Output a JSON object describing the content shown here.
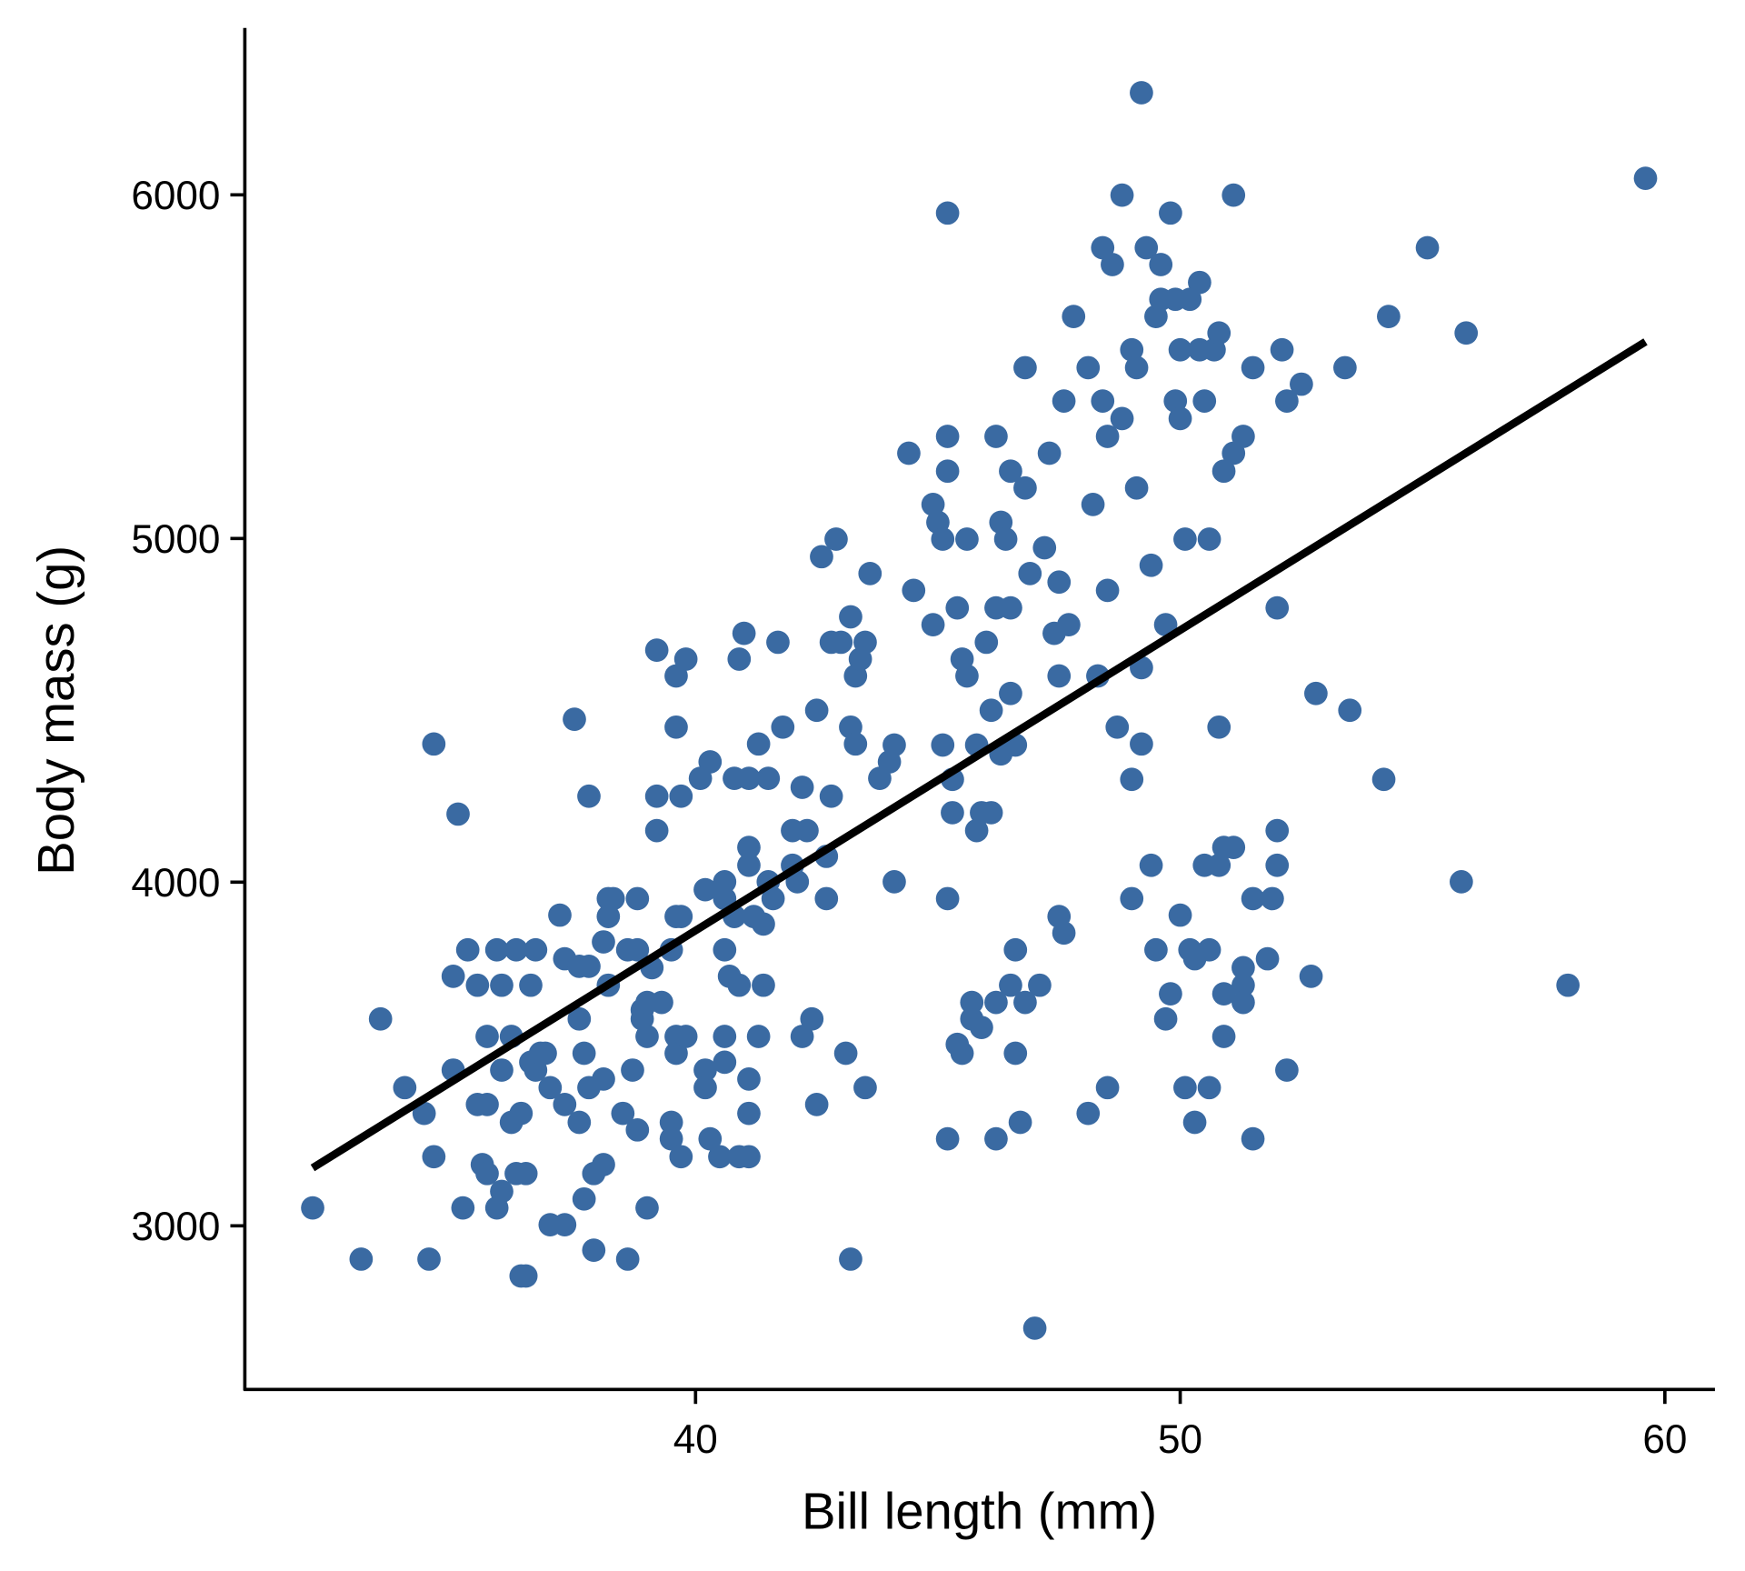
{
  "chart_data": {
    "type": "scatter",
    "title": "",
    "xlabel": "Bill length (mm)",
    "ylabel": "Body mass (g)",
    "xlim": [
      30.7,
      61.0
    ],
    "ylim": [
      2524,
      6486
    ],
    "grid": false,
    "legend": "none",
    "x_ticks": [
      40,
      50,
      60
    ],
    "x_tick_labels": [
      "40",
      "50",
      "60"
    ],
    "y_ticks": [
      3000,
      4000,
      5000,
      6000
    ],
    "y_tick_labels": [
      "3000",
      "4000",
      "5000",
      "6000"
    ],
    "point_color": "#3a6aa2",
    "line_color": "#000000",
    "trendline": {
      "type": "linear",
      "intercept": 362.3,
      "slope": 87.42,
      "x_range": [
        32.1,
        59.6
      ]
    },
    "points": [
      [
        32.1,
        3052
      ],
      [
        33.1,
        2903
      ],
      [
        33.5,
        3602
      ],
      [
        34.0,
        3402
      ],
      [
        34.4,
        3327
      ],
      [
        34.5,
        2903
      ],
      [
        34.6,
        4402
      ],
      [
        34.6,
        3201
      ],
      [
        35.0,
        3453
      ],
      [
        35.0,
        3726
      ],
      [
        35.1,
        4198
      ],
      [
        35.2,
        3052
      ],
      [
        35.3,
        3803
      ],
      [
        35.5,
        3700
      ],
      [
        35.5,
        3353
      ],
      [
        35.6,
        3178
      ],
      [
        35.7,
        3551
      ],
      [
        35.7,
        3353
      ],
      [
        35.7,
        3152
      ],
      [
        35.9,
        3803
      ],
      [
        35.9,
        3052
      ],
      [
        36.0,
        3700
      ],
      [
        36.0,
        3453
      ],
      [
        36.0,
        3100
      ],
      [
        36.2,
        3551
      ],
      [
        36.2,
        3301
      ],
      [
        36.3,
        3803
      ],
      [
        36.3,
        3152
      ],
      [
        36.4,
        3327
      ],
      [
        36.4,
        2854
      ],
      [
        36.5,
        2854
      ],
      [
        36.5,
        3152
      ],
      [
        36.6,
        3700
      ],
      [
        36.6,
        3476
      ],
      [
        36.7,
        3803
      ],
      [
        36.7,
        3453
      ],
      [
        36.8,
        3502
      ],
      [
        36.9,
        3502
      ],
      [
        37.0,
        3402
      ],
      [
        37.0,
        3003
      ],
      [
        37.2,
        3904
      ],
      [
        37.3,
        3003
      ],
      [
        37.3,
        3353
      ],
      [
        37.3,
        3777
      ],
      [
        37.5,
        4474
      ],
      [
        37.6,
        3301
      ],
      [
        37.6,
        3602
      ],
      [
        37.6,
        3755
      ],
      [
        37.7,
        3502
      ],
      [
        37.7,
        3078
      ],
      [
        37.8,
        4250
      ],
      [
        37.8,
        3402
      ],
      [
        37.8,
        3755
      ],
      [
        37.9,
        2929
      ],
      [
        37.9,
        3152
      ],
      [
        38.1,
        3178
      ],
      [
        38.1,
        3427
      ],
      [
        38.1,
        3826
      ],
      [
        38.2,
        3900
      ],
      [
        38.2,
        3700
      ],
      [
        38.2,
        3952
      ],
      [
        38.3,
        3952
      ],
      [
        38.5,
        3327
      ],
      [
        38.6,
        2903
      ],
      [
        38.6,
        3803
      ],
      [
        38.7,
        3453
      ],
      [
        38.8,
        3952
      ],
      [
        38.8,
        3279
      ],
      [
        38.8,
        3803
      ],
      [
        38.9,
        3628
      ],
      [
        38.9,
        3602
      ],
      [
        39.0,
        3052
      ],
      [
        39.0,
        3551
      ],
      [
        39.0,
        3650
      ],
      [
        39.1,
        3751
      ],
      [
        39.2,
        4675
      ],
      [
        39.2,
        4150
      ],
      [
        39.2,
        4250
      ],
      [
        39.3,
        3650
      ],
      [
        39.5,
        3301
      ],
      [
        39.5,
        3253
      ],
      [
        39.5,
        3803
      ],
      [
        39.6,
        4600
      ],
      [
        39.6,
        4451
      ],
      [
        39.6,
        3900
      ],
      [
        39.6,
        3551
      ],
      [
        39.6,
        3502
      ],
      [
        39.7,
        3201
      ],
      [
        39.7,
        4250
      ],
      [
        39.7,
        3900
      ],
      [
        39.8,
        4649
      ],
      [
        39.8,
        3551
      ],
      [
        40.1,
        4302
      ],
      [
        40.2,
        3978
      ],
      [
        40.2,
        3453
      ],
      [
        40.2,
        3402
      ],
      [
        40.3,
        3253
      ],
      [
        40.3,
        4350
      ],
      [
        40.5,
        3201
      ],
      [
        40.6,
        3952
      ],
      [
        40.6,
        4001
      ],
      [
        40.6,
        3803
      ],
      [
        40.6,
        3551
      ],
      [
        40.6,
        3476
      ],
      [
        40.7,
        3726
      ],
      [
        40.8,
        4302
      ],
      [
        40.8,
        3900
      ],
      [
        40.9,
        3700
      ],
      [
        40.9,
        3201
      ],
      [
        40.9,
        4649
      ],
      [
        41.0,
        4724
      ],
      [
        41.1,
        4302
      ],
      [
        41.1,
        4049
      ],
      [
        41.1,
        4101
      ],
      [
        41.1,
        3427
      ],
      [
        41.1,
        3327
      ],
      [
        41.1,
        3201
      ],
      [
        41.2,
        3900
      ],
      [
        41.3,
        4402
      ],
      [
        41.3,
        3551
      ],
      [
        41.4,
        3878
      ],
      [
        41.4,
        3700
      ],
      [
        41.5,
        4001
      ],
      [
        41.5,
        4302
      ],
      [
        41.6,
        3952
      ],
      [
        41.7,
        4698
      ],
      [
        41.8,
        4451
      ],
      [
        42.0,
        4150
      ],
      [
        42.0,
        4049
      ],
      [
        42.1,
        4001
      ],
      [
        42.2,
        4276
      ],
      [
        42.2,
        3551
      ],
      [
        42.3,
        4150
      ],
      [
        42.4,
        3602
      ],
      [
        42.5,
        3353
      ],
      [
        42.5,
        4500
      ],
      [
        42.6,
        4947
      ],
      [
        42.7,
        4075
      ],
      [
        42.7,
        3952
      ],
      [
        42.8,
        4250
      ],
      [
        42.8,
        4698
      ],
      [
        42.9,
        4998
      ],
      [
        43.0,
        4698
      ],
      [
        43.1,
        3502
      ],
      [
        43.2,
        4772
      ],
      [
        43.2,
        4451
      ],
      [
        43.2,
        2903
      ],
      [
        43.3,
        4600
      ],
      [
        43.3,
        4402
      ],
      [
        43.4,
        4649
      ],
      [
        43.5,
        4698
      ],
      [
        43.5,
        3402
      ],
      [
        43.6,
        4898
      ],
      [
        43.8,
        4302
      ],
      [
        44.0,
        4350
      ],
      [
        44.1,
        4399
      ],
      [
        44.1,
        4001
      ],
      [
        44.4,
        5248
      ],
      [
        44.5,
        4849
      ],
      [
        44.9,
        4749
      ],
      [
        44.9,
        5099
      ],
      [
        45.0,
        5047
      ],
      [
        45.1,
        4399
      ],
      [
        45.1,
        4998
      ],
      [
        45.2,
        5297
      ],
      [
        45.2,
        5196
      ],
      [
        45.2,
        3952
      ],
      [
        45.2,
        3253
      ],
      [
        45.2,
        5947
      ],
      [
        45.3,
        4299
      ],
      [
        45.3,
        4202
      ],
      [
        45.4,
        4798
      ],
      [
        45.4,
        3528
      ],
      [
        45.5,
        3502
      ],
      [
        45.5,
        4649
      ],
      [
        45.6,
        4600
      ],
      [
        45.6,
        4998
      ],
      [
        45.7,
        3602
      ],
      [
        45.7,
        3650
      ],
      [
        45.8,
        4399
      ],
      [
        45.8,
        4150
      ],
      [
        45.9,
        4202
      ],
      [
        45.9,
        3577
      ],
      [
        46.0,
        4698
      ],
      [
        46.1,
        4202
      ],
      [
        46.1,
        4500
      ],
      [
        46.2,
        5297
      ],
      [
        46.2,
        3650
      ],
      [
        46.2,
        4798
      ],
      [
        46.2,
        3253
      ],
      [
        46.3,
        4373
      ],
      [
        46.3,
        5047
      ],
      [
        46.4,
        4998
      ],
      [
        46.5,
        4798
      ],
      [
        46.5,
        3700
      ],
      [
        46.5,
        4549
      ],
      [
        46.5,
        5196
      ],
      [
        46.6,
        4399
      ],
      [
        46.6,
        3502
      ],
      [
        46.6,
        3803
      ],
      [
        46.7,
        3301
      ],
      [
        46.8,
        5497
      ],
      [
        46.8,
        5147
      ],
      [
        46.8,
        3650
      ],
      [
        46.9,
        4898
      ],
      [
        47.0,
        2702
      ],
      [
        47.1,
        3700
      ],
      [
        47.2,
        4973
      ],
      [
        47.3,
        5248
      ],
      [
        47.4,
        4724
      ],
      [
        47.5,
        4600
      ],
      [
        47.5,
        4873
      ],
      [
        47.5,
        3900
      ],
      [
        47.6,
        3852
      ],
      [
        47.6,
        5400
      ],
      [
        47.7,
        4749
      ],
      [
        47.8,
        5646
      ],
      [
        48.1,
        3327
      ],
      [
        48.1,
        5497
      ],
      [
        48.2,
        5099
      ],
      [
        48.3,
        4600
      ],
      [
        48.4,
        5846
      ],
      [
        48.4,
        5400
      ],
      [
        48.5,
        5297
      ],
      [
        48.5,
        4849
      ],
      [
        48.5,
        3402
      ],
      [
        48.6,
        5797
      ],
      [
        48.7,
        4451
      ],
      [
        48.8,
        5349
      ],
      [
        48.8,
        5999
      ],
      [
        49.0,
        5549
      ],
      [
        49.0,
        4299
      ],
      [
        49.0,
        3952
      ],
      [
        49.1,
        5147
      ],
      [
        49.1,
        5497
      ],
      [
        49.2,
        4624
      ],
      [
        49.2,
        4402
      ],
      [
        49.2,
        6297
      ],
      [
        49.3,
        5846
      ],
      [
        49.4,
        4049
      ],
      [
        49.4,
        4922
      ],
      [
        49.5,
        3803
      ],
      [
        49.5,
        5646
      ],
      [
        49.6,
        5797
      ],
      [
        49.6,
        5696
      ],
      [
        49.7,
        4749
      ],
      [
        49.7,
        3602
      ],
      [
        49.8,
        3675
      ],
      [
        49.8,
        5947
      ],
      [
        49.9,
        5696
      ],
      [
        49.9,
        5400
      ],
      [
        50.0,
        3904
      ],
      [
        50.0,
        5349
      ],
      [
        50.0,
        5549
      ],
      [
        50.1,
        4998
      ],
      [
        50.1,
        3402
      ],
      [
        50.2,
        3803
      ],
      [
        50.2,
        5696
      ],
      [
        50.3,
        3777
      ],
      [
        50.3,
        3301
      ],
      [
        50.4,
        5745
      ],
      [
        50.4,
        5549
      ],
      [
        50.5,
        4049
      ],
      [
        50.5,
        5400
      ],
      [
        50.6,
        4998
      ],
      [
        50.6,
        3402
      ],
      [
        50.6,
        3803
      ],
      [
        50.7,
        5549
      ],
      [
        50.8,
        4049
      ],
      [
        50.8,
        5598
      ],
      [
        50.8,
        4451
      ],
      [
        50.9,
        5196
      ],
      [
        50.9,
        4101
      ],
      [
        50.9,
        3675
      ],
      [
        50.9,
        3551
      ],
      [
        51.1,
        4101
      ],
      [
        51.1,
        5248
      ],
      [
        51.1,
        5999
      ],
      [
        51.3,
        3700
      ],
      [
        51.3,
        3751
      ],
      [
        51.3,
        5297
      ],
      [
        51.3,
        3650
      ],
      [
        51.5,
        3952
      ],
      [
        51.5,
        5497
      ],
      [
        51.5,
        3253
      ],
      [
        51.8,
        3777
      ],
      [
        51.9,
        3952
      ],
      [
        52.0,
        4049
      ],
      [
        52.0,
        4150
      ],
      [
        52.0,
        4798
      ],
      [
        52.1,
        5549
      ],
      [
        52.2,
        5400
      ],
      [
        52.2,
        3453
      ],
      [
        52.5,
        5449
      ],
      [
        52.7,
        3726
      ],
      [
        52.8,
        4549
      ],
      [
        53.4,
        5497
      ],
      [
        53.5,
        4500
      ],
      [
        54.2,
        4299
      ],
      [
        54.3,
        5646
      ],
      [
        55.1,
        5846
      ],
      [
        55.8,
        4001
      ],
      [
        55.9,
        5598
      ],
      [
        58.0,
        3700
      ],
      [
        59.6,
        6048
      ]
    ]
  }
}
